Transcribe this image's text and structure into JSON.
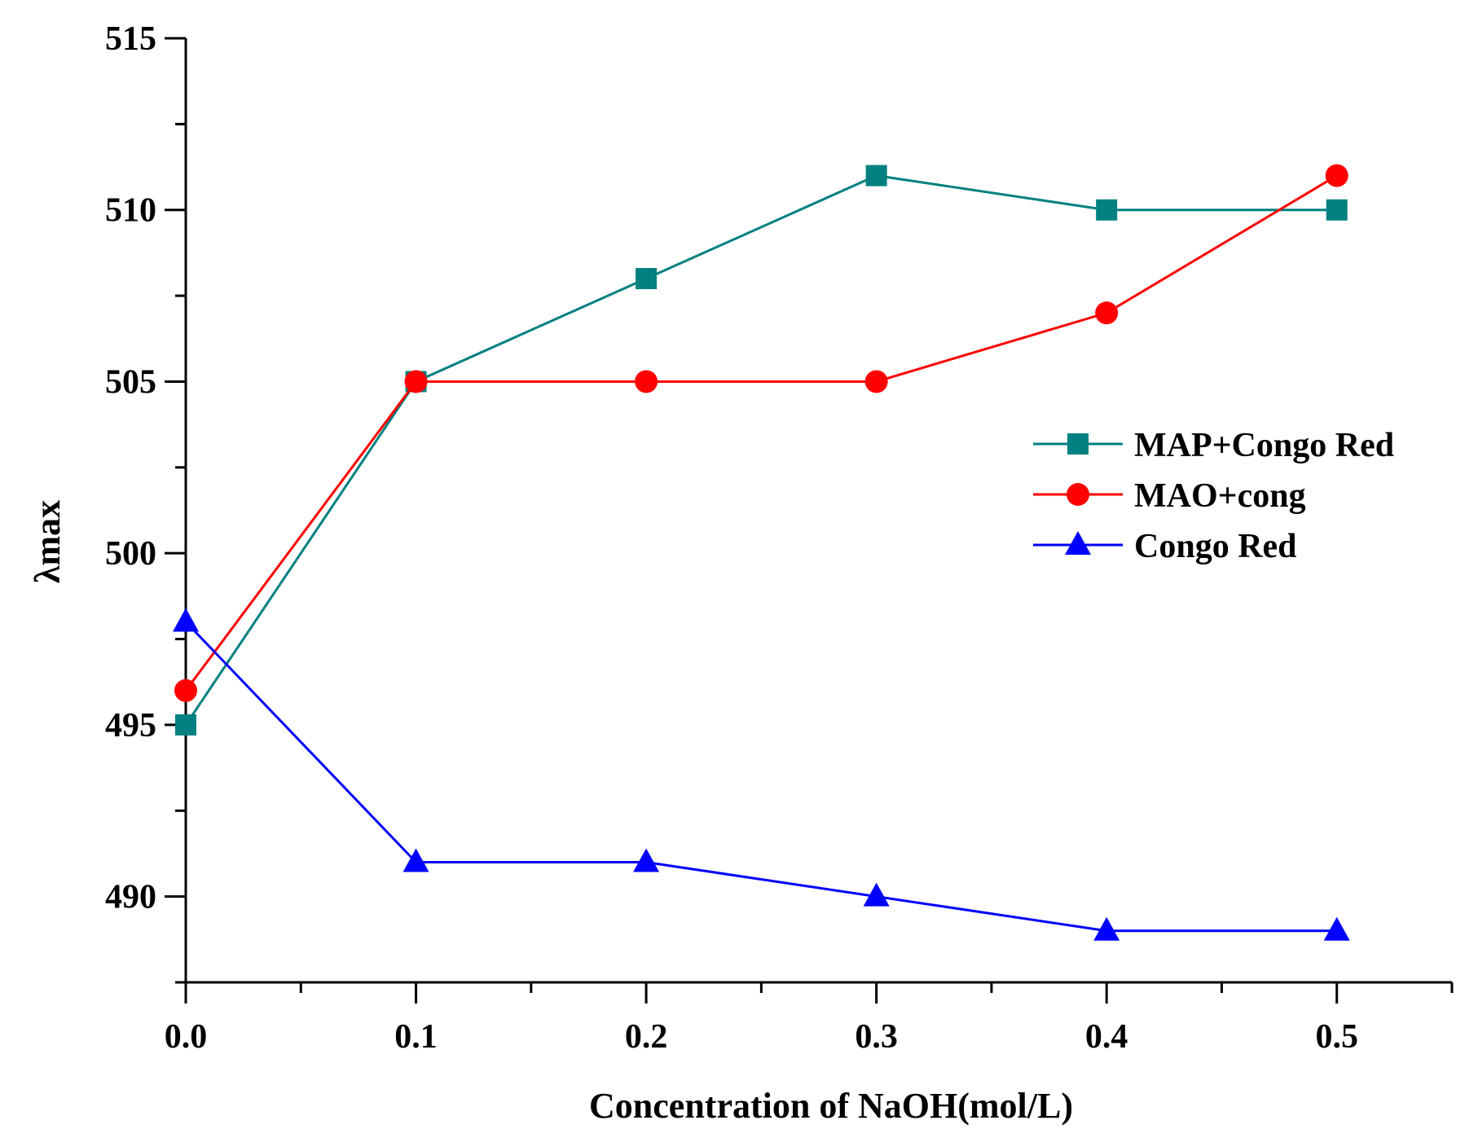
{
  "chart_data": {
    "type": "line",
    "title": "",
    "xlabel": "Concentration of NaOH(mol/L)",
    "ylabel": "λmax",
    "x": [
      0.0,
      0.1,
      0.2,
      0.3,
      0.4,
      0.5
    ],
    "xlim": [
      0.0,
      0.55
    ],
    "ylim": [
      487.5,
      515
    ],
    "xticks": [
      0.0,
      0.1,
      0.2,
      0.3,
      0.4,
      0.5
    ],
    "xtick_labels": [
      "0.0",
      "0.1",
      "0.2",
      "0.3",
      "0.4",
      "0.5"
    ],
    "xminor": [
      0.05,
      0.15,
      0.25,
      0.35,
      0.45,
      0.55
    ],
    "yticks": [
      490,
      495,
      500,
      505,
      510,
      515
    ],
    "ytick_labels": [
      "490",
      "495",
      "500",
      "505",
      "510",
      "515"
    ],
    "yminor": [
      487.5,
      492.5,
      497.5,
      502.5,
      507.5,
      512.5
    ],
    "grid": false,
    "legend_position": "right",
    "series": [
      {
        "name": "MAP+Congo Red",
        "color": "#008080",
        "marker": "square",
        "values": [
          495,
          505,
          508,
          511,
          510,
          510
        ]
      },
      {
        "name": "MAO+cong",
        "color": "#ff0000",
        "marker": "circle",
        "values": [
          496,
          505,
          505,
          505,
          507,
          511
        ]
      },
      {
        "name": "Congo Red",
        "color": "#0000ff",
        "marker": "triangle",
        "values": [
          498,
          491,
          491,
          490,
          489,
          489
        ]
      }
    ]
  }
}
